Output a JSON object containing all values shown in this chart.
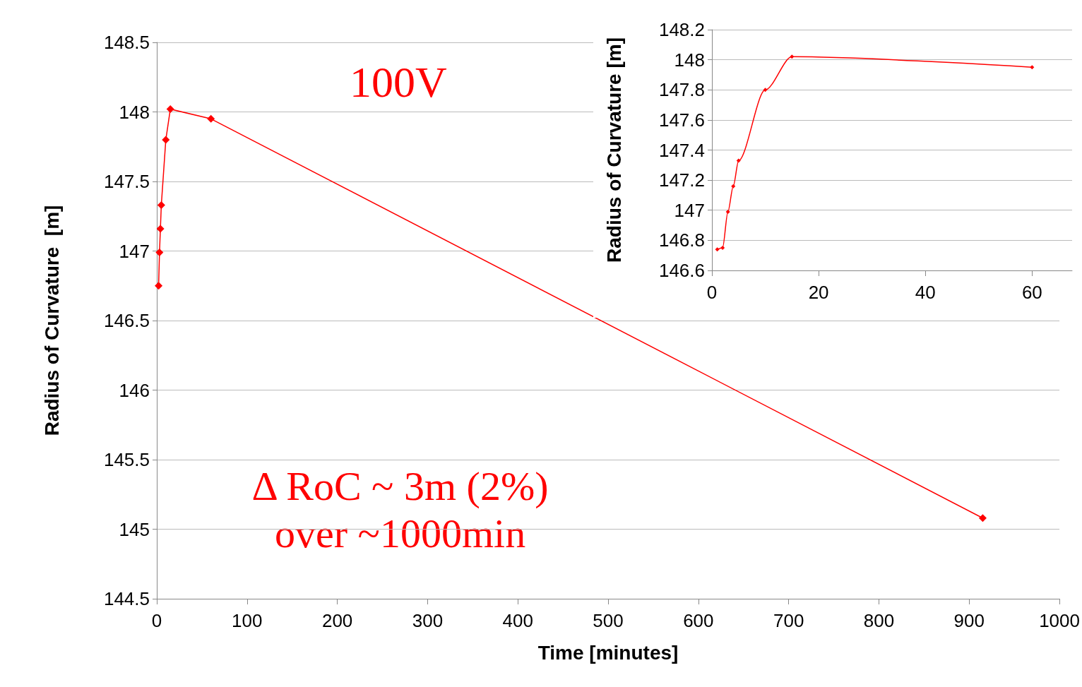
{
  "chart_data": [
    {
      "type": "line",
      "xlabel": "Time [minutes]",
      "ylabel": "Radius of Curvature  [m]",
      "annotations": [
        "100V",
        "Δ RoC ~ 3m (2%)\nover ~1000min"
      ],
      "series": [
        {
          "color": "#ff0000",
          "x": [
            2,
            3,
            4,
            5,
            10,
            15,
            60,
            915
          ],
          "values": [
            146.75,
            146.99,
            147.16,
            147.33,
            147.8,
            148.02,
            147.95,
            145.08
          ]
        }
      ],
      "xlim": [
        0,
        1000
      ],
      "xticks": [
        0,
        100,
        200,
        300,
        400,
        500,
        600,
        700,
        800,
        900,
        1000
      ],
      "ylim": [
        144.5,
        148.5
      ],
      "yticks": [
        144.5,
        145,
        145.5,
        146,
        146.5,
        147,
        147.5,
        148,
        148.5
      ],
      "grid": "y",
      "marker": "diamond",
      "line_style": "solid"
    },
    {
      "type": "line",
      "ylabel": "Radius of Curvature [m]",
      "series": [
        {
          "color": "#ff0000",
          "x": [
            1,
            2,
            3,
            4,
            5,
            10,
            15,
            60
          ],
          "values": [
            146.74,
            146.75,
            146.99,
            147.16,
            147.33,
            147.8,
            148.02,
            147.95
          ]
        }
      ],
      "xlim": [
        0,
        67.5
      ],
      "xticks": [
        0,
        20,
        40,
        60
      ],
      "ylim": [
        146.6,
        148.2
      ],
      "yticks": [
        146.6,
        146.8,
        147,
        147.2,
        147.4,
        147.6,
        147.8,
        148,
        148.2
      ],
      "grid": "y",
      "marker": "diamond",
      "line_style": "solid"
    }
  ]
}
